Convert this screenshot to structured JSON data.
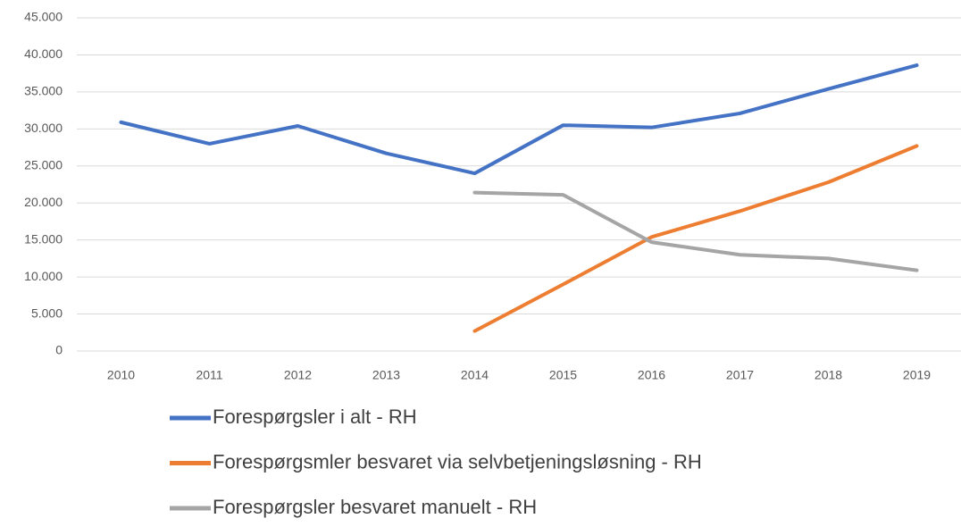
{
  "chart_data": {
    "type": "line",
    "categories": [
      "2010",
      "2011",
      "2012",
      "2013",
      "2014",
      "2015",
      "2016",
      "2017",
      "2018",
      "2019"
    ],
    "series": [
      {
        "name": "Forespørgsler i alt - RH",
        "color": "#4472c4",
        "values": [
          30900,
          28000,
          30400,
          26700,
          24000,
          30500,
          30200,
          32100,
          35400,
          38600
        ]
      },
      {
        "name": "Forespørgsmler besvaret via selvbetjeningsløsning - RH",
        "color": "#ed7d31",
        "values": [
          null,
          null,
          null,
          null,
          2700,
          9000,
          15400,
          18900,
          22800,
          27700
        ]
      },
      {
        "name": "Forespørgsler besvaret manuelt - RH",
        "color": "#a5a5a5",
        "values": [
          null,
          null,
          null,
          null,
          21400,
          21100,
          14700,
          13000,
          12500,
          10900
        ]
      }
    ],
    "ylim": [
      0,
      45000
    ],
    "yticks": [
      0,
      {
        "value": 5000,
        "label": "5.000"
      },
      {
        "value": 10000,
        "label": "10.000"
      },
      {
        "value": 15000,
        "label": "15.000"
      },
      {
        "value": 20000,
        "label": "20.000"
      },
      {
        "value": 25000,
        "label": "25.000"
      },
      {
        "value": 30000,
        "label": "30.000"
      },
      {
        "value": 35000,
        "label": "35.000"
      },
      {
        "value": 40000,
        "label": "40.000"
      },
      {
        "value": 45000,
        "label": "45.000"
      }
    ],
    "grid": true,
    "legend": "bottom"
  }
}
